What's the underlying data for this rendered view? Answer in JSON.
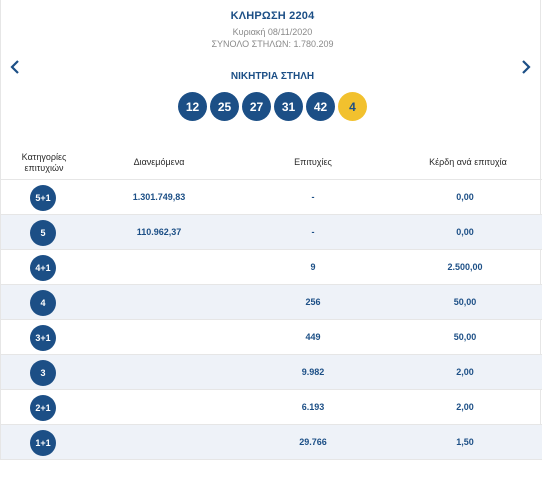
{
  "draw": {
    "title": "ΚΛΗΡΩΣΗ 2204",
    "date": "Κυριακή 08/11/2020",
    "columns_total": "ΣΥΝΟΛΟ ΣΤΗΛΩΝ: 1.780.209"
  },
  "winning": {
    "title": "ΝΙΚΗΤΡΙΑ ΣΤΗΛΗ",
    "numbers": [
      "12",
      "25",
      "27",
      "31",
      "42"
    ],
    "joker": "4"
  },
  "nav": {
    "prev_icon": "chevron-left-icon",
    "next_icon": "chevron-right-icon"
  },
  "table": {
    "headers": {
      "category": "Κατηγορίες επιτυχιών",
      "distributed": "Διανεμόμενα",
      "winners": "Επιτυχίες",
      "prize": "Κέρδη ανά επιτυχία"
    },
    "rows": [
      {
        "category": "5+1",
        "distributed": "1.301.749,83",
        "winners": "-",
        "prize": "0,00"
      },
      {
        "category": "5",
        "distributed": "110.962,37",
        "winners": "-",
        "prize": "0,00"
      },
      {
        "category": "4+1",
        "distributed": "",
        "winners": "9",
        "prize": "2.500,00"
      },
      {
        "category": "4",
        "distributed": "",
        "winners": "256",
        "prize": "50,00"
      },
      {
        "category": "3+1",
        "distributed": "",
        "winners": "449",
        "prize": "50,00"
      },
      {
        "category": "3",
        "distributed": "",
        "winners": "9.982",
        "prize": "2,00"
      },
      {
        "category": "2+1",
        "distributed": "",
        "winners": "6.193",
        "prize": "2,00"
      },
      {
        "category": "1+1",
        "distributed": "",
        "winners": "29.766",
        "prize": "1,50"
      }
    ]
  },
  "colors": {
    "primary": "#1c4f86",
    "joker": "#f2c12e",
    "alt_row": "#eef2f8"
  }
}
